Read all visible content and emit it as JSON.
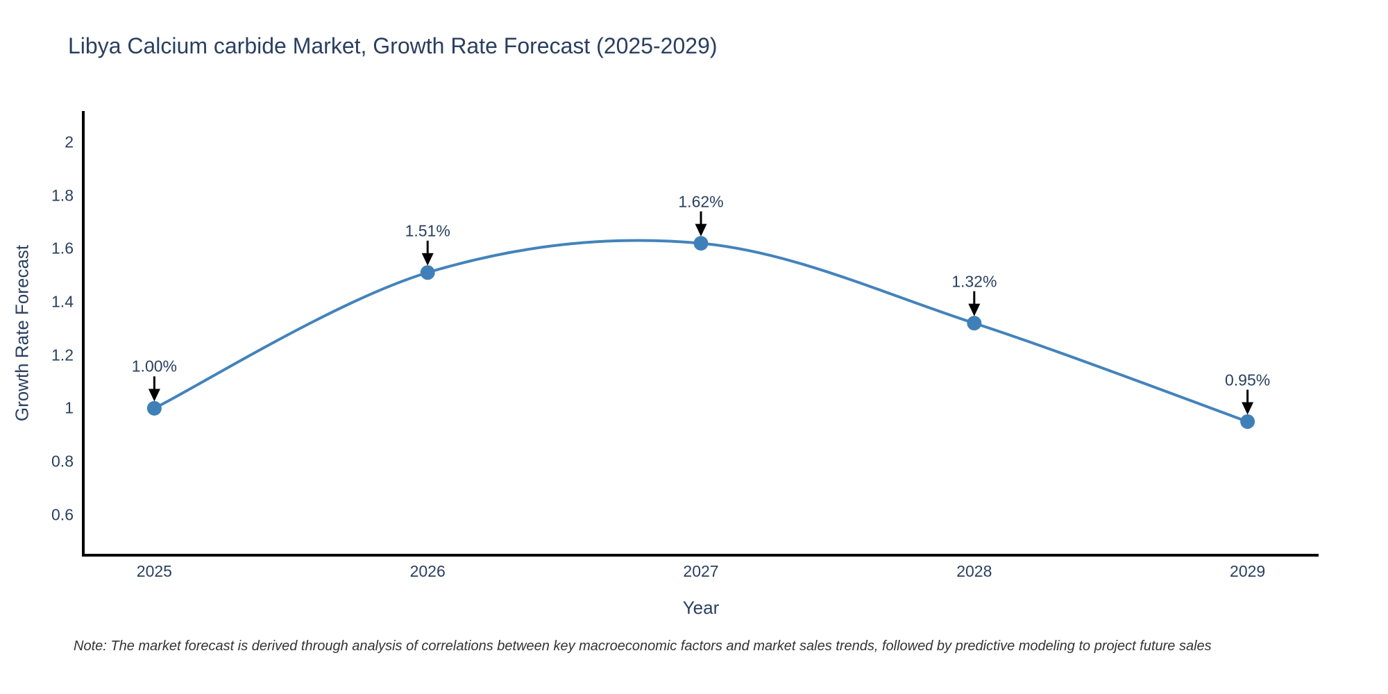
{
  "chart_data": {
    "type": "line",
    "title": "Libya Calcium carbide Market, Growth Rate Forecast (2025-2029)",
    "xlabel": "Year",
    "ylabel": "Growth Rate Forecast",
    "x": [
      2025,
      2026,
      2027,
      2028,
      2029
    ],
    "y": [
      1.0,
      1.51,
      1.62,
      1.32,
      0.95
    ],
    "point_labels": [
      "1.00%",
      "1.51%",
      "1.62%",
      "1.32%",
      "0.95%"
    ],
    "xtick_labels": [
      "2025",
      "2026",
      "2027",
      "2028",
      "2029"
    ],
    "yticks": [
      0.6,
      0.8,
      1,
      1.2,
      1.4,
      1.6,
      1.8,
      2
    ],
    "ytick_labels": [
      "0.6",
      "0.8",
      "1",
      "1.2",
      "1.4",
      "1.6",
      "1.8",
      "2"
    ],
    "xlim": [
      2024.74,
      2029.26
    ],
    "ylim": [
      0.448,
      2.117
    ],
    "line_shape": "spline",
    "grid": false,
    "legend": "none",
    "line_color": "#4383bb",
    "marker_color": "#4080b8",
    "axis_line_color": "#000000",
    "arrow_color": "#000000",
    "text_color": "#2a3f5f"
  },
  "note": "Note: The market forecast is derived through analysis of correlations between key macroeconomic factors and market sales trends, followed by predictive modeling to project future sales"
}
